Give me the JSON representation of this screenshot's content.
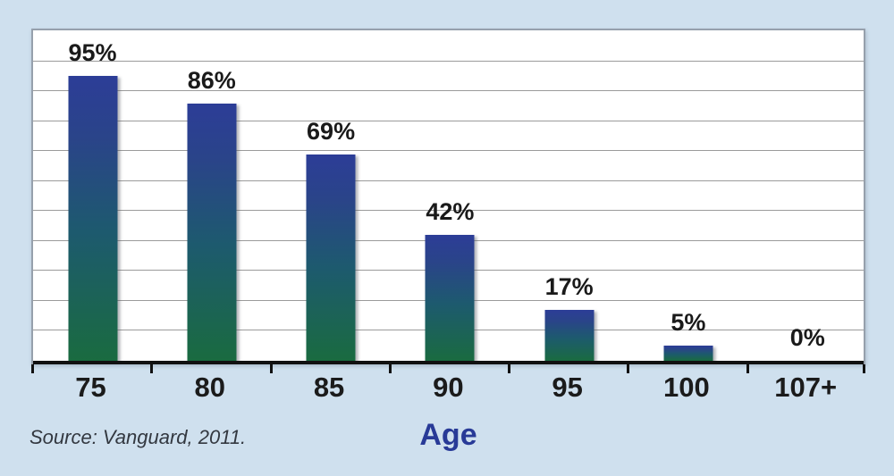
{
  "chart_data": {
    "type": "bar",
    "categories": [
      "75",
      "80",
      "85",
      "90",
      "95",
      "100",
      "107+"
    ],
    "values": [
      95,
      86,
      69,
      42,
      17,
      5,
      0
    ],
    "value_labels": [
      "95%",
      "86%",
      "69%",
      "42%",
      "17%",
      "5%",
      "0%"
    ],
    "title": "",
    "xlabel": "Age",
    "ylabel": "",
    "ylim": [
      0,
      110
    ],
    "grid_step": 10,
    "grid_on": true,
    "legend": "none",
    "source": "Source: Vanguard, 2011.",
    "colors": {
      "background": "#cfe0ee",
      "plot_background": "#ffffff",
      "bar_gradient_top": "#2c3d97",
      "bar_gradient_mid": "#1d5a6e",
      "bar_gradient_bottom": "#1a6b40",
      "gridline": "#9b9b9b",
      "axis": "#111111",
      "value_label": "#1a1a1a",
      "category_label": "#1b1b1b",
      "x_title": "#283a97",
      "source_text": "#333840"
    }
  }
}
